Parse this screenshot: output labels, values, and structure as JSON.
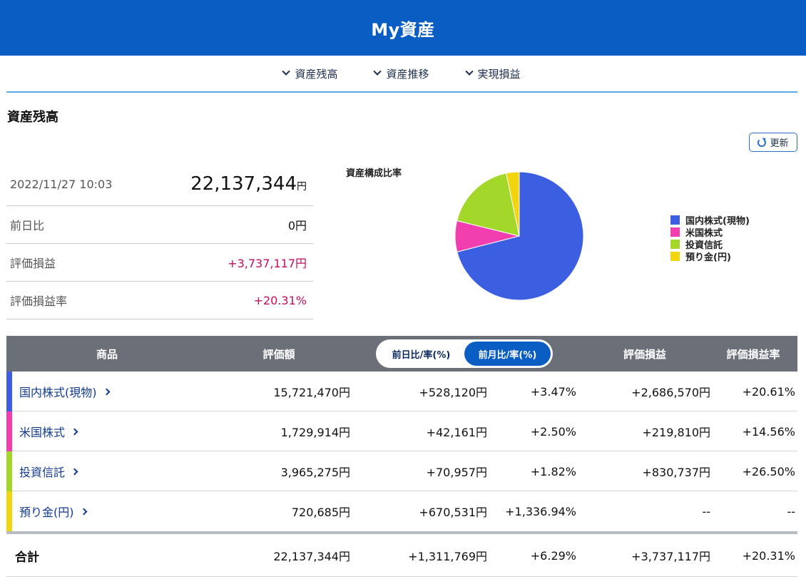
{
  "header": {
    "title": "My資産"
  },
  "nav": {
    "items": [
      {
        "label": "資産残高"
      },
      {
        "label": "資産推移"
      },
      {
        "label": "実現損益"
      }
    ]
  },
  "section": {
    "title": "資産残高"
  },
  "refresh": {
    "label": "更新"
  },
  "summary": {
    "datetime": "2022/11/27 10:03",
    "total": "22,137,344",
    "total_unit": "円",
    "rows": [
      {
        "label": "前日比",
        "value": "0円"
      },
      {
        "label": "評価損益",
        "value": "+3,737,117円"
      },
      {
        "label": "評価損益率",
        "value": "+20.31%"
      }
    ]
  },
  "chart_data": {
    "type": "pie",
    "title": "資産構成比率",
    "legend_position": "right",
    "categories": [
      "国内株式(現物)",
      "米国株式",
      "投資信託",
      "預り金(円)"
    ],
    "values": [
      15721470,
      1729914,
      3965275,
      720685
    ],
    "colors": [
      "#3c5ee0",
      "#f23fb0",
      "#a3d82a",
      "#f2d40f"
    ]
  },
  "table": {
    "headers": {
      "name": "商品",
      "valuation": "評価額",
      "toggle_day": "前日比/率(%)",
      "toggle_month": "前月比/率(%)",
      "pl": "評価損益",
      "pl_rate": "評価損益率"
    },
    "rows": [
      {
        "name": "国内株式(現物)",
        "valuation": "15,721,470円",
        "change": "+528,120円",
        "change_rate": "+3.47%",
        "pl": "+2,686,570円",
        "pl_rate": "+20.61%",
        "color": "#3c5ee0"
      },
      {
        "name": "米国株式",
        "valuation": "1,729,914円",
        "change": "+42,161円",
        "change_rate": "+2.50%",
        "pl": "+219,810円",
        "pl_rate": "+14.56%",
        "color": "#f23fb0"
      },
      {
        "name": "投資信託",
        "valuation": "3,965,275円",
        "change": "+70,957円",
        "change_rate": "+1.82%",
        "pl": "+830,737円",
        "pl_rate": "+26.50%",
        "color": "#a3d82a"
      },
      {
        "name": "預り金(円)",
        "valuation": "720,685円",
        "change": "+670,531円",
        "change_rate": "+1,336.94%",
        "pl": "--",
        "pl_rate": "--",
        "color": "#f2d40f"
      }
    ],
    "total": {
      "label": "合計",
      "valuation": "22,137,344円",
      "change": "+1,311,769円",
      "change_rate": "+6.29%",
      "pl": "+3,737,117円",
      "pl_rate": "+20.31%"
    }
  }
}
